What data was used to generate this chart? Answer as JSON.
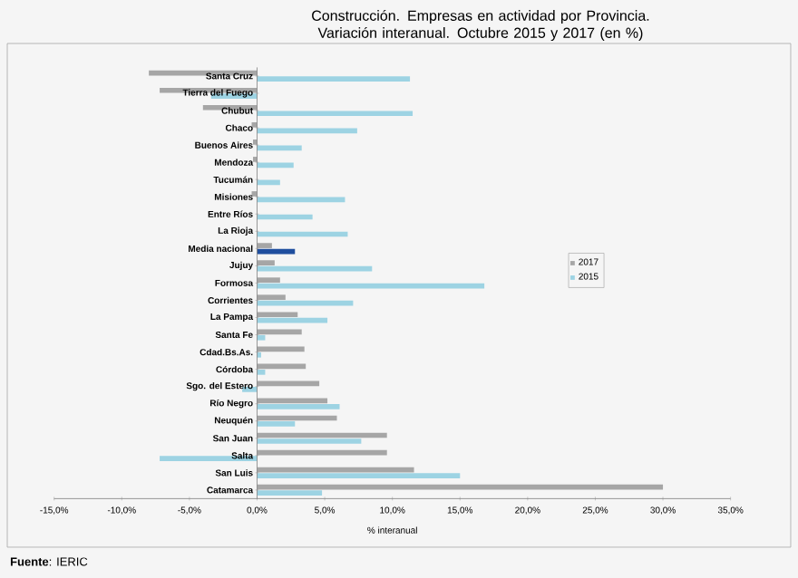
{
  "chart_data": {
    "type": "bar",
    "orientation": "horizontal",
    "title": "Construcción. Empresas en actividad por Provincia. Variación interanual. Octubre 2015 y 2017 (en %)",
    "xlabel": "% interanual",
    "annotations": [
      "**Fuente**: IERIC"
    ],
    "categories": [
      "Santa Cruz",
      "Tierra del Fuego",
      "Chubut",
      "Chaco",
      "Buenos Aires",
      "Mendoza",
      "Tucumán",
      "Misiones",
      "Entre Ríos",
      "La Rioja",
      "Media nacional",
      "Jujuy",
      "Formosa",
      "Corrientes",
      "La Pampa",
      "Santa Fe",
      "Cdad.Bs.As.",
      "Córdoba",
      "Sgo. del Estero",
      "Río Negro",
      "Neuquén",
      "San Juan",
      "Salta",
      "San Luis",
      "Catamarca"
    ],
    "series": [
      {
        "name": "2017",
        "color": "#a6a6a6",
        "values": [
          -8.0,
          -7.2,
          -4.0,
          -0.4,
          -0.3,
          -0.3,
          null,
          -0.4,
          null,
          null,
          1.1,
          1.3,
          1.7,
          2.1,
          3.0,
          3.3,
          3.5,
          3.6,
          4.6,
          5.2,
          5.9,
          9.6,
          9.6,
          11.6,
          30.0
        ]
      },
      {
        "name": "2015",
        "color": "#9dd3e3",
        "colors": [
          "#9dd3e3",
          "#9dd3e3",
          "#9dd3e3",
          "#9dd3e3",
          "#9dd3e3",
          "#9dd3e3",
          "#9dd3e3",
          "#9dd3e3",
          "#9dd3e3",
          "#9dd3e3",
          "#1f4e9e",
          "#9dd3e3",
          "#9dd3e3",
          "#9dd3e3",
          "#9dd3e3",
          "#9dd3e3",
          "#9dd3e3",
          "#9dd3e3",
          "#9dd3e3",
          "#9dd3e3",
          "#9dd3e3",
          "#9dd3e3",
          "#9dd3e3",
          "#9dd3e3",
          "#9dd3e3"
        ],
        "values": [
          11.3,
          -3.4,
          11.5,
          7.4,
          3.3,
          2.7,
          1.7,
          6.5,
          4.1,
          6.7,
          2.8,
          8.5,
          16.8,
          7.1,
          5.2,
          0.6,
          0.3,
          0.6,
          -1.1,
          6.1,
          2.8,
          7.7,
          -7.2,
          15.0,
          4.8
        ]
      }
    ],
    "xlim": [
      -15,
      35
    ],
    "xticks": [
      {
        "value": -15,
        "label": "-15,0%"
      },
      {
        "value": -10,
        "label": "-10,0%"
      },
      {
        "value": -5,
        "label": "-5,0%"
      },
      {
        "value": 0,
        "label": "0,0%"
      },
      {
        "value": 5,
        "label": "5,0%"
      },
      {
        "value": 10,
        "label": "10,0%"
      },
      {
        "value": 15,
        "label": "15,0%"
      },
      {
        "value": 20,
        "label": "20,0%"
      },
      {
        "value": 25,
        "label": "25,0%"
      },
      {
        "value": 30,
        "label": "30,0%"
      },
      {
        "value": 35,
        "label": "35,0%"
      }
    ],
    "legend": "right"
  }
}
